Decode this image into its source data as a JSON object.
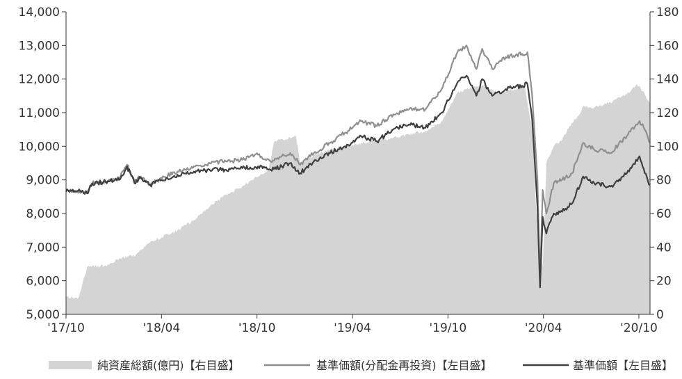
{
  "chart_data": {
    "type": "line",
    "x_ticks": [
      "'17/10",
      "'18/04",
      "'18/10",
      "'19/04",
      "'19/10",
      "'20/04",
      "'20/10"
    ],
    "left_axis": {
      "ticks": [
        "5,000",
        "6,000",
        "7,000",
        "8,000",
        "9,000",
        "10,000",
        "11,000",
        "12,000",
        "13,000",
        "14,000"
      ],
      "min": 5000,
      "max": 14000
    },
    "right_axis": {
      "ticks": [
        "0",
        "20",
        "40",
        "60",
        "80",
        "100",
        "120",
        "140",
        "160",
        "180"
      ],
      "min": 0,
      "max": 180
    },
    "legend": [
      {
        "label": "純資産総額(億円)【右目盛】",
        "style": "area",
        "color": "#d4d4d4"
      },
      {
        "label": "基準価額(分配金再投資)【左目盛】",
        "style": "line",
        "color": "#8f8f8f"
      },
      {
        "label": "基準価額【左目盛】",
        "style": "line",
        "color": "#3f3f3f"
      }
    ],
    "series": [
      {
        "name": "純資産総額(億円)【右目盛】",
        "axis": "right",
        "type": "area",
        "color": "#d4d4d4",
        "points": [
          [
            "2017-10-01",
            10
          ],
          [
            "2017-10-25",
            10
          ],
          [
            "2017-11-01",
            18
          ],
          [
            "2017-11-10",
            28
          ],
          [
            "2017-12-15",
            29
          ],
          [
            "2018-01-10",
            33
          ],
          [
            "2018-02-10",
            35
          ],
          [
            "2018-03-05",
            42
          ],
          [
            "2018-04-01",
            46
          ],
          [
            "2018-05-01",
            50
          ],
          [
            "2018-06-01",
            56
          ],
          [
            "2018-07-01",
            64
          ],
          [
            "2018-08-01",
            71
          ],
          [
            "2018-09-01",
            76
          ],
          [
            "2018-10-01",
            82
          ],
          [
            "2018-10-20",
            85
          ],
          [
            "2018-11-01",
            103
          ],
          [
            "2018-12-01",
            105
          ],
          [
            "2018-12-12",
            106
          ],
          [
            "2018-12-20",
            90
          ],
          [
            "2019-01-15",
            95
          ],
          [
            "2019-02-15",
            98
          ],
          [
            "2019-03-15",
            100
          ],
          [
            "2019-04-15",
            102
          ],
          [
            "2019-05-15",
            103
          ],
          [
            "2019-06-15",
            105
          ],
          [
            "2019-07-15",
            107
          ],
          [
            "2019-08-15",
            109
          ],
          [
            "2019-09-15",
            115
          ],
          [
            "2019-10-15",
            132
          ],
          [
            "2019-11-01",
            134
          ],
          [
            "2019-12-01",
            136
          ],
          [
            "2020-01-01",
            132
          ],
          [
            "2020-02-01",
            134
          ],
          [
            "2020-02-20",
            136
          ],
          [
            "2020-03-05",
            110
          ],
          [
            "2020-03-15",
            48
          ],
          [
            "2020-03-25",
            28
          ],
          [
            "2020-04-01",
            90
          ],
          [
            "2020-04-15",
            100
          ],
          [
            "2020-05-01",
            104
          ],
          [
            "2020-05-15",
            112
          ],
          [
            "2020-06-01",
            118
          ],
          [
            "2020-06-10",
            124
          ],
          [
            "2020-07-01",
            123
          ],
          [
            "2020-08-01",
            126
          ],
          [
            "2020-09-01",
            131
          ],
          [
            "2020-09-20",
            137
          ],
          [
            "2020-10-01",
            133
          ],
          [
            "2020-10-15",
            125
          ]
        ]
      },
      {
        "name": "基準価額(分配金再投資)【左目盛】",
        "axis": "left",
        "type": "line",
        "color": "#8f8f8f",
        "points": [
          [
            "2017-10-01",
            8650
          ],
          [
            "2017-10-20",
            8650
          ],
          [
            "2017-11-01",
            8680
          ],
          [
            "2017-11-10",
            8600
          ],
          [
            "2017-11-20",
            8900
          ],
          [
            "2017-12-15",
            8950
          ],
          [
            "2018-01-10",
            9050
          ],
          [
            "2018-01-25",
            9450
          ],
          [
            "2018-02-08",
            8950
          ],
          [
            "2018-02-20",
            9100
          ],
          [
            "2018-03-10",
            8850
          ],
          [
            "2018-04-01",
            9050
          ],
          [
            "2018-05-01",
            9250
          ],
          [
            "2018-06-01",
            9400
          ],
          [
            "2018-07-01",
            9500
          ],
          [
            "2018-08-01",
            9550
          ],
          [
            "2018-09-01",
            9600
          ],
          [
            "2018-10-01",
            9750
          ],
          [
            "2018-10-25",
            9550
          ],
          [
            "2018-11-15",
            9700
          ],
          [
            "2018-12-01",
            9800
          ],
          [
            "2018-12-20",
            9450
          ],
          [
            "2019-01-15",
            9800
          ],
          [
            "2019-02-15",
            10100
          ],
          [
            "2019-03-15",
            10400
          ],
          [
            "2019-04-15",
            10750
          ],
          [
            "2019-05-15",
            10600
          ],
          [
            "2019-06-15",
            10950
          ],
          [
            "2019-07-15",
            11100
          ],
          [
            "2019-08-15",
            11100
          ],
          [
            "2019-09-15",
            11700
          ],
          [
            "2019-10-15",
            12800
          ],
          [
            "2019-11-01",
            13000
          ],
          [
            "2019-11-20",
            12300
          ],
          [
            "2019-12-01",
            12900
          ],
          [
            "2019-12-20",
            12300
          ],
          [
            "2020-01-15",
            12650
          ],
          [
            "2020-02-15",
            12750
          ],
          [
            "2020-02-25",
            12800
          ],
          [
            "2020-03-05",
            11500
          ],
          [
            "2020-03-15",
            9000
          ],
          [
            "2020-03-20",
            6000
          ],
          [
            "2020-03-25",
            8700
          ],
          [
            "2020-04-01",
            8000
          ],
          [
            "2020-04-15",
            8900
          ],
          [
            "2020-05-01",
            9000
          ],
          [
            "2020-05-20",
            9200
          ],
          [
            "2020-06-10",
            10100
          ],
          [
            "2020-07-01",
            9900
          ],
          [
            "2020-08-01",
            9800
          ],
          [
            "2020-09-01",
            10300
          ],
          [
            "2020-09-25",
            10750
          ],
          [
            "2020-10-05",
            10500
          ],
          [
            "2020-10-15",
            10100
          ]
        ]
      },
      {
        "name": "基準価額【左目盛】",
        "axis": "left",
        "type": "line",
        "color": "#3f3f3f",
        "points": [
          [
            "2017-10-01",
            8650
          ],
          [
            "2017-10-20",
            8650
          ],
          [
            "2017-11-01",
            8680
          ],
          [
            "2017-11-10",
            8600
          ],
          [
            "2017-11-20",
            8900
          ],
          [
            "2017-12-15",
            8950
          ],
          [
            "2018-01-10",
            9000
          ],
          [
            "2018-01-25",
            9400
          ],
          [
            "2018-02-08",
            8900
          ],
          [
            "2018-02-20",
            9050
          ],
          [
            "2018-03-10",
            8850
          ],
          [
            "2018-04-01",
            9000
          ],
          [
            "2018-05-01",
            9150
          ],
          [
            "2018-06-01",
            9250
          ],
          [
            "2018-07-01",
            9300
          ],
          [
            "2018-08-01",
            9300
          ],
          [
            "2018-09-01",
            9350
          ],
          [
            "2018-10-01",
            9400
          ],
          [
            "2018-10-25",
            9300
          ],
          [
            "2018-11-15",
            9400
          ],
          [
            "2018-12-01",
            9500
          ],
          [
            "2018-12-20",
            9200
          ],
          [
            "2019-01-15",
            9550
          ],
          [
            "2019-02-15",
            9800
          ],
          [
            "2019-03-15",
            10000
          ],
          [
            "2019-04-15",
            10300
          ],
          [
            "2019-05-15",
            10150
          ],
          [
            "2019-06-15",
            10500
          ],
          [
            "2019-07-15",
            10650
          ],
          [
            "2019-08-15",
            10550
          ],
          [
            "2019-09-15",
            11000
          ],
          [
            "2019-10-15",
            11900
          ],
          [
            "2019-11-01",
            12100
          ],
          [
            "2019-11-20",
            11500
          ],
          [
            "2019-12-01",
            12000
          ],
          [
            "2019-12-20",
            11500
          ],
          [
            "2020-01-15",
            11700
          ],
          [
            "2020-02-15",
            11800
          ],
          [
            "2020-02-25",
            11850
          ],
          [
            "2020-03-05",
            10800
          ],
          [
            "2020-03-15",
            8200
          ],
          [
            "2020-03-20",
            5800
          ],
          [
            "2020-03-25",
            7900
          ],
          [
            "2020-04-01",
            7400
          ],
          [
            "2020-04-15",
            8000
          ],
          [
            "2020-05-01",
            8050
          ],
          [
            "2020-05-20",
            8300
          ],
          [
            "2020-06-10",
            9100
          ],
          [
            "2020-07-01",
            8900
          ],
          [
            "2020-08-01",
            8800
          ],
          [
            "2020-09-01",
            9200
          ],
          [
            "2020-09-25",
            9700
          ],
          [
            "2020-10-05",
            9200
          ],
          [
            "2020-10-15",
            8850
          ]
        ]
      }
    ]
  }
}
